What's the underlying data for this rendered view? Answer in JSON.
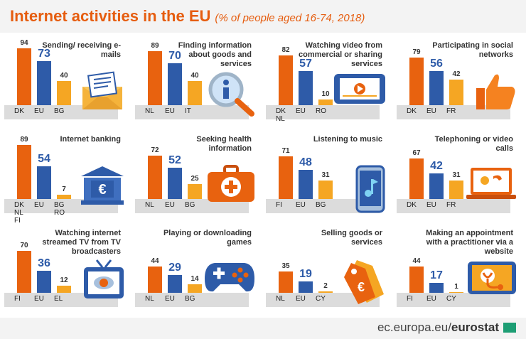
{
  "header": {
    "title": "Internet activities in the EU",
    "subtitle": "(% of people aged 16-74, 2018)"
  },
  "footer": {
    "source_prefix": "ec.europa.eu/",
    "source_brand": "eurostat"
  },
  "colors": {
    "first": "#e8620f",
    "eu": "#2e5ba8",
    "last": "#f5a623",
    "baseline": "#dcdcdc"
  },
  "chart_data": [
    {
      "type": "bar",
      "title": "Sending/ receiving e-mails",
      "categories": [
        "DK",
        "EU",
        "BG"
      ],
      "values": [
        94,
        73,
        40
      ],
      "icon": "envelope-icon"
    },
    {
      "type": "bar",
      "title": "Finding information about goods and services",
      "categories": [
        "NL",
        "EU",
        "IT"
      ],
      "values": [
        89,
        70,
        40
      ],
      "icon": "magnifier-icon"
    },
    {
      "type": "bar",
      "title": "Watching video from commercial or sharing services",
      "categories": [
        "DK NL",
        "EU",
        "RO"
      ],
      "values": [
        82,
        57,
        10
      ],
      "icon": "tablet-video-icon"
    },
    {
      "type": "bar",
      "title": "Participating in social networks",
      "categories": [
        "DK",
        "EU",
        "FR"
      ],
      "values": [
        79,
        56,
        42
      ],
      "icon": "thumbs-up-icon"
    },
    {
      "type": "bar",
      "title": "Internet banking",
      "categories": [
        "DK NL FI",
        "EU",
        "BG RO"
      ],
      "values": [
        89,
        54,
        7
      ],
      "icon": "bank-euro-icon"
    },
    {
      "type": "bar",
      "title": "Seeking health information",
      "categories": [
        "NL",
        "EU",
        "BG"
      ],
      "values": [
        72,
        52,
        25
      ],
      "icon": "first-aid-icon"
    },
    {
      "type": "bar",
      "title": "Listening to music",
      "categories": [
        "FI",
        "EU",
        "BG"
      ],
      "values": [
        71,
        48,
        31
      ],
      "icon": "phone-music-icon"
    },
    {
      "type": "bar",
      "title": "Telephoning or video calls",
      "categories": [
        "DK",
        "EU",
        "FR"
      ],
      "values": [
        67,
        42,
        31
      ],
      "icon": "laptop-call-icon"
    },
    {
      "type": "bar",
      "title": "Watching internet streamed TV from TV broadcasters",
      "categories": [
        "FI",
        "EU",
        "EL"
      ],
      "values": [
        70,
        36,
        12
      ],
      "icon": "tv-cloud-icon"
    },
    {
      "type": "bar",
      "title": "Playing or downloading games",
      "categories": [
        "NL",
        "EU",
        "BG"
      ],
      "values": [
        44,
        29,
        14
      ],
      "icon": "gamepad-icon"
    },
    {
      "type": "bar",
      "title": "Selling goods or services",
      "categories": [
        "NL",
        "EU",
        "CY"
      ],
      "values": [
        35,
        19,
        2
      ],
      "icon": "price-tag-icon"
    },
    {
      "type": "bar",
      "title": "Making an appointment with a practitioner via a website",
      "categories": [
        "FI",
        "EU",
        "CY"
      ],
      "values": [
        44,
        17,
        1
      ],
      "icon": "tablet-stethoscope-icon"
    }
  ]
}
